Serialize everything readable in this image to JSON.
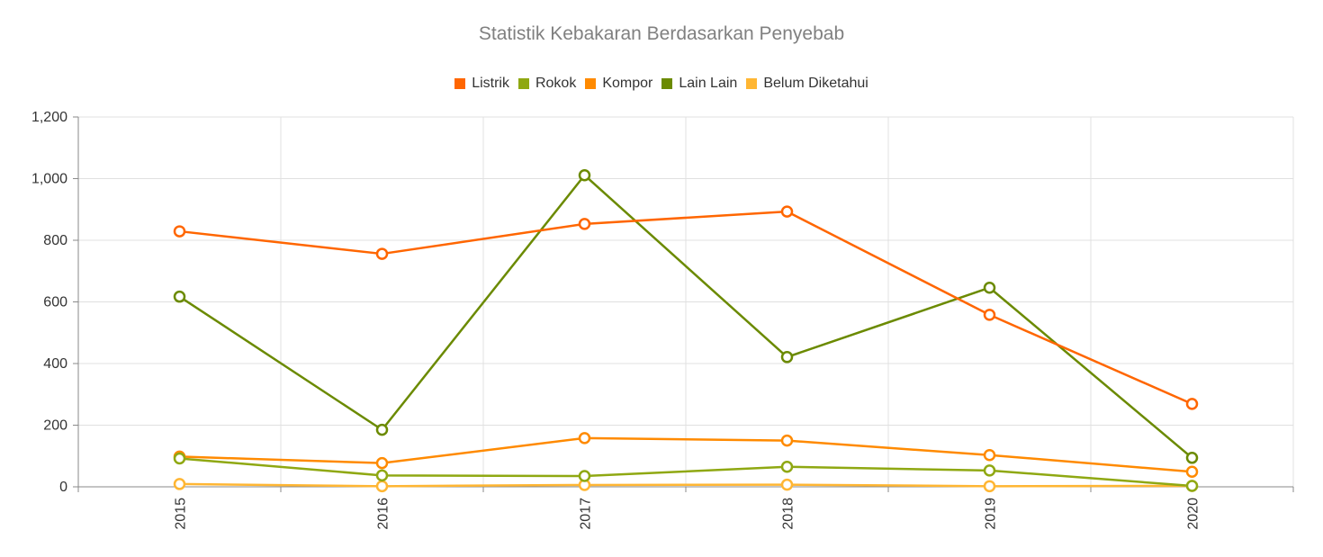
{
  "chart_data": {
    "type": "line",
    "title": "Statistik Kebakaran Berdasarkan Penyebab",
    "xlabel": "",
    "ylabel": "",
    "categories": [
      "2015",
      "2016",
      "2017",
      "2018",
      "2019",
      "2020"
    ],
    "ylim": [
      0,
      1200
    ],
    "yticks": [
      "0",
      "200",
      "400",
      "600",
      "800",
      "1,000",
      "1,200"
    ],
    "grid": true,
    "legend_position": "top-center",
    "series": [
      {
        "name": "Listrik",
        "color": "#FF6600",
        "values": [
          829,
          756,
          853,
          893,
          558,
          269
        ]
      },
      {
        "name": "Rokok",
        "color": "#8FA812",
        "values": [
          92,
          37,
          35,
          65,
          53,
          3
        ]
      },
      {
        "name": "Kompor",
        "color": "#FF8A00",
        "values": [
          98,
          77,
          158,
          150,
          103,
          49
        ]
      },
      {
        "name": "Lain Lain",
        "color": "#6B8A00",
        "values": [
          617,
          185,
          1011,
          421,
          646,
          94
        ]
      },
      {
        "name": "Belum Diketahui",
        "color": "#FFB633",
        "values": [
          9,
          2,
          6,
          7,
          2,
          3
        ]
      }
    ]
  }
}
